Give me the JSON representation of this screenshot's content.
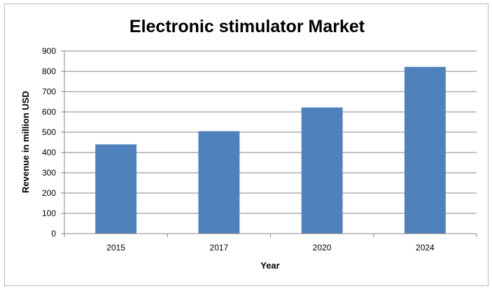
{
  "chart_data": {
    "type": "bar",
    "title": "Electronic stimulator  Market",
    "xlabel": "Year",
    "ylabel": "Revenue in million USD",
    "categories": [
      "2015",
      "2017",
      "2020",
      "2024"
    ],
    "values": [
      440,
      505,
      622,
      822
    ],
    "ylim": [
      0,
      900
    ],
    "yticks": [
      "0",
      "100",
      "200",
      "300",
      "400",
      "500",
      "600",
      "700",
      "800",
      "900"
    ],
    "grid": true,
    "legend": "none",
    "bar_color": "#4F81BD"
  }
}
